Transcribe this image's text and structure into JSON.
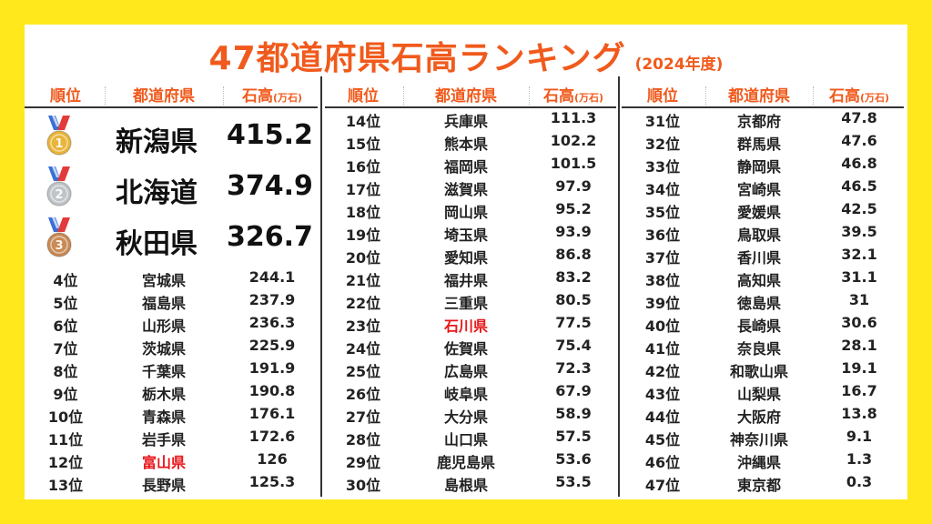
{
  "title": "47都道府県石高ランキング",
  "year": "(2024年度)",
  "headers": {
    "rank": "順位",
    "pref": "都道府県",
    "value_main": "石高",
    "value_unit": "(万石)"
  },
  "top3": [
    {
      "medal": "gold-medal-icon",
      "pref": "新潟県",
      "value": "415.2"
    },
    {
      "medal": "silver-medal-icon",
      "pref": "北海道",
      "value": "374.9"
    },
    {
      "medal": "bronze-medal-icon",
      "pref": "秋田県",
      "value": "326.7"
    }
  ],
  "col1": [
    {
      "rank": "4位",
      "pref": "宮城県",
      "value": "244.1"
    },
    {
      "rank": "5位",
      "pref": "福島県",
      "value": "237.9"
    },
    {
      "rank": "6位",
      "pref": "山形県",
      "value": "236.3"
    },
    {
      "rank": "7位",
      "pref": "茨城県",
      "value": "225.9"
    },
    {
      "rank": "8位",
      "pref": "千葉県",
      "value": "191.9"
    },
    {
      "rank": "9位",
      "pref": "栃木県",
      "value": "190.8"
    },
    {
      "rank": "10位",
      "pref": "青森県",
      "value": "176.1"
    },
    {
      "rank": "11位",
      "pref": "岩手県",
      "value": "172.6"
    },
    {
      "rank": "12位",
      "pref": "富山県",
      "value": "126",
      "highlight": true
    },
    {
      "rank": "13位",
      "pref": "長野県",
      "value": "125.3"
    }
  ],
  "col2": [
    {
      "rank": "14位",
      "pref": "兵庫県",
      "value": "111.3"
    },
    {
      "rank": "15位",
      "pref": "熊本県",
      "value": "102.2"
    },
    {
      "rank": "16位",
      "pref": "福岡県",
      "value": "101.5"
    },
    {
      "rank": "17位",
      "pref": "滋賀県",
      "value": "97.9"
    },
    {
      "rank": "18位",
      "pref": "岡山県",
      "value": "95.2"
    },
    {
      "rank": "19位",
      "pref": "埼玉県",
      "value": "93.9"
    },
    {
      "rank": "20位",
      "pref": "愛知県",
      "value": "86.8"
    },
    {
      "rank": "21位",
      "pref": "福井県",
      "value": "83.2"
    },
    {
      "rank": "22位",
      "pref": "三重県",
      "value": "80.5"
    },
    {
      "rank": "23位",
      "pref": "石川県",
      "value": "77.5",
      "highlight": true
    },
    {
      "rank": "24位",
      "pref": "佐賀県",
      "value": "75.4"
    },
    {
      "rank": "25位",
      "pref": "広島県",
      "value": "72.3"
    },
    {
      "rank": "26位",
      "pref": "岐阜県",
      "value": "67.9"
    },
    {
      "rank": "27位",
      "pref": "大分県",
      "value": "58.9"
    },
    {
      "rank": "28位",
      "pref": "山口県",
      "value": "57.5"
    },
    {
      "rank": "29位",
      "pref": "鹿児島県",
      "value": "53.6"
    },
    {
      "rank": "30位",
      "pref": "島根県",
      "value": "53.5"
    }
  ],
  "col3": [
    {
      "rank": "31位",
      "pref": "京都府",
      "value": "47.8"
    },
    {
      "rank": "32位",
      "pref": "群馬県",
      "value": "47.6"
    },
    {
      "rank": "33位",
      "pref": "静岡県",
      "value": "46.8"
    },
    {
      "rank": "34位",
      "pref": "宮崎県",
      "value": "46.5"
    },
    {
      "rank": "35位",
      "pref": "愛媛県",
      "value": "42.5"
    },
    {
      "rank": "36位",
      "pref": "鳥取県",
      "value": "39.5"
    },
    {
      "rank": "37位",
      "pref": "香川県",
      "value": "32.1"
    },
    {
      "rank": "38位",
      "pref": "高知県",
      "value": "31.1"
    },
    {
      "rank": "39位",
      "pref": "徳島県",
      "value": "31"
    },
    {
      "rank": "40位",
      "pref": "長崎県",
      "value": "30.6"
    },
    {
      "rank": "41位",
      "pref": "奈良県",
      "value": "28.1"
    },
    {
      "rank": "42位",
      "pref": "和歌山県",
      "value": "19.1"
    },
    {
      "rank": "43位",
      "pref": "山梨県",
      "value": "16.7"
    },
    {
      "rank": "44位",
      "pref": "大阪府",
      "value": "13.8"
    },
    {
      "rank": "45位",
      "pref": "神奈川県",
      "value": "9.1"
    },
    {
      "rank": "46位",
      "pref": "沖縄県",
      "value": "1.3"
    },
    {
      "rank": "47位",
      "pref": "東京都",
      "value": "0.3"
    }
  ],
  "colors": {
    "title": "#f05a1c",
    "highlight": "#e8161b",
    "background": "#ffe81c",
    "gold": "#e9b53a",
    "silver": "#bfc4c9",
    "bronze": "#c98a55"
  }
}
